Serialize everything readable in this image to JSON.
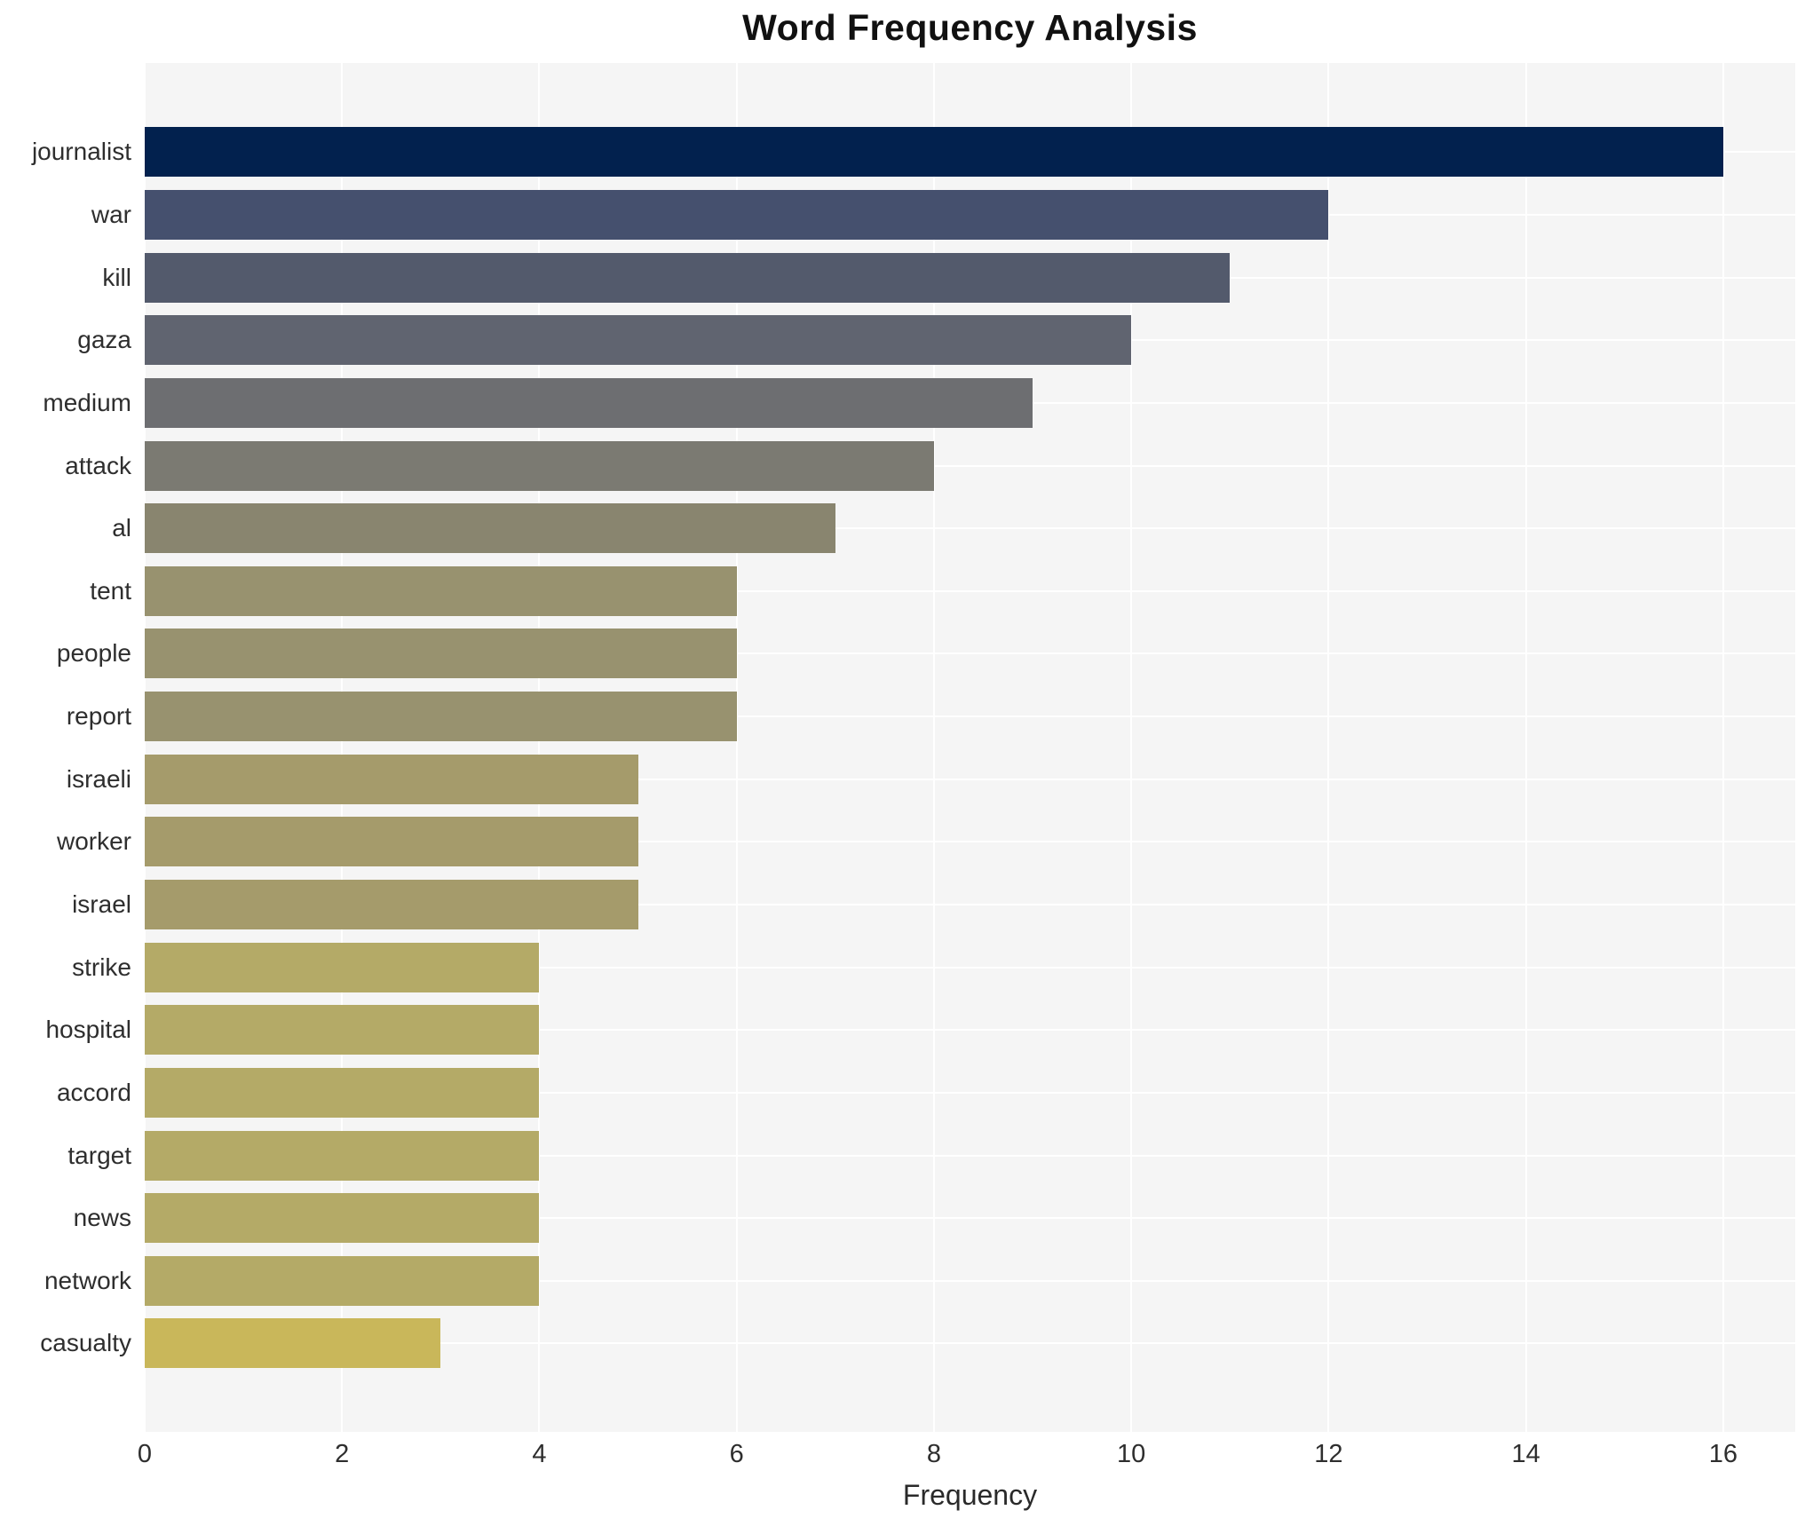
{
  "title": "Word Frequency Analysis",
  "xaxis": {
    "label": "Frequency"
  },
  "chart_data": {
    "type": "bar",
    "orientation": "horizontal",
    "title": "Word Frequency Analysis",
    "xlabel": "Frequency",
    "ylabel": "",
    "categories": [
      "journalist",
      "war",
      "kill",
      "gaza",
      "medium",
      "attack",
      "al",
      "tent",
      "people",
      "report",
      "israeli",
      "worker",
      "israel",
      "strike",
      "hospital",
      "accord",
      "target",
      "news",
      "network",
      "casualty"
    ],
    "values": [
      16,
      12,
      11,
      10,
      9,
      8,
      7,
      6,
      6,
      6,
      5,
      5,
      5,
      4,
      4,
      4,
      4,
      4,
      4,
      3
    ],
    "bar_colors": [
      "#02214e",
      "#45506e",
      "#535a6c",
      "#606470",
      "#6d6e71",
      "#7b7a72",
      "#89856f",
      "#98926f",
      "#98926f",
      "#98926f",
      "#a59b6b",
      "#a59b6b",
      "#a59b6b",
      "#b4aa67",
      "#b4aa67",
      "#b4aa67",
      "#b4aa67",
      "#b4aa67",
      "#b4aa67",
      "#c9b75a"
    ],
    "xticks": [
      0,
      2,
      4,
      6,
      8,
      10,
      12,
      14,
      16
    ],
    "xlim": [
      0,
      16.73
    ],
    "grid": true,
    "legend": "none",
    "plot_background": "#f5f5f5",
    "gridline_color": "#ffffff",
    "page_background": "#ffffff"
  }
}
